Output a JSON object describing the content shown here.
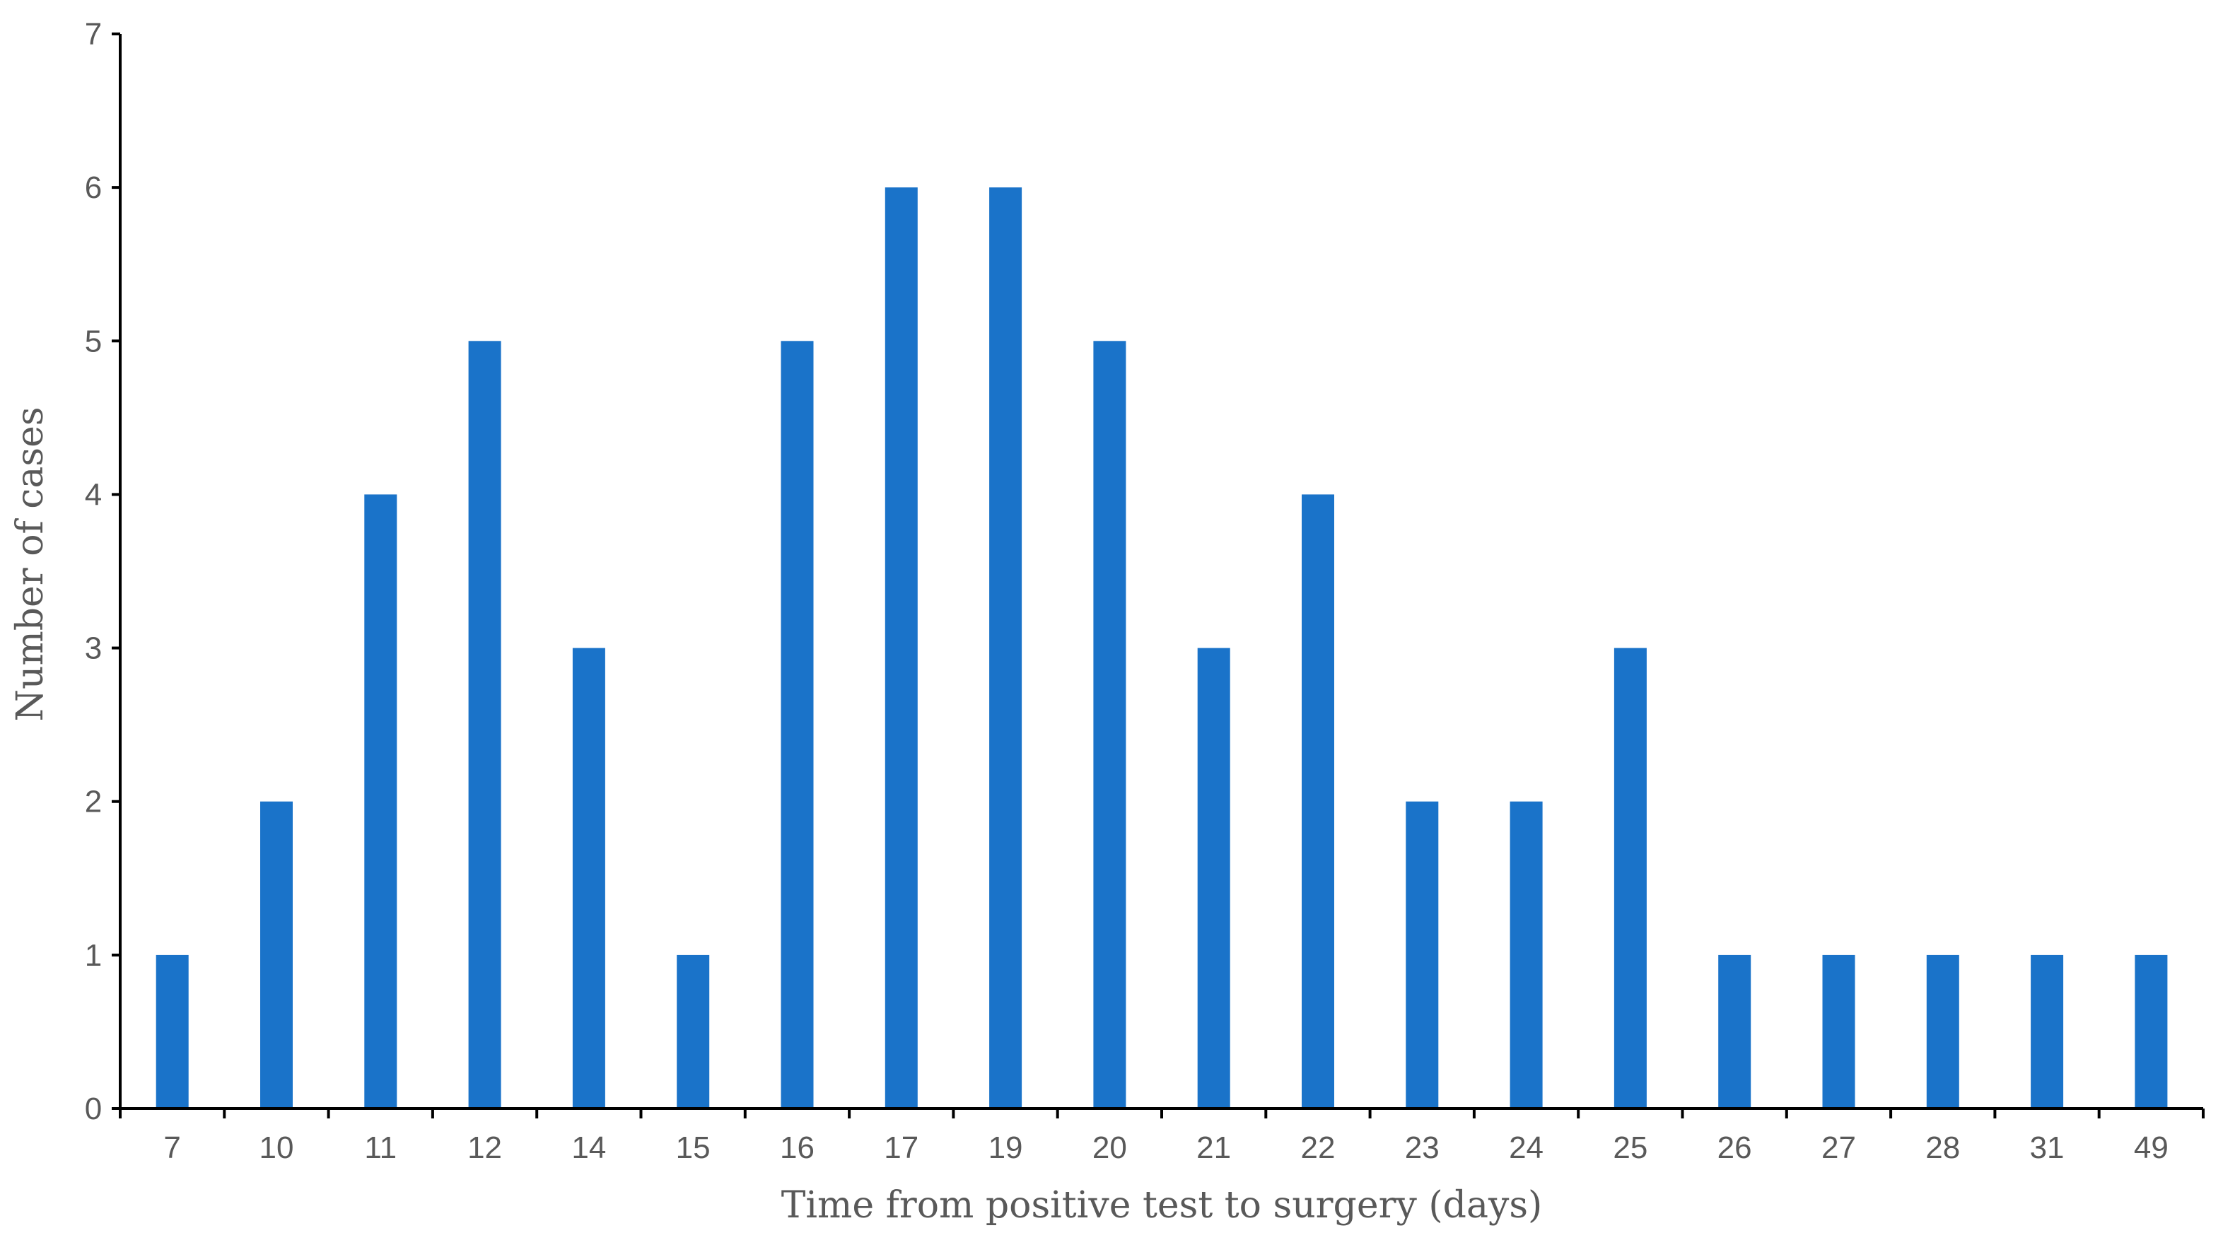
{
  "chart_data": {
    "type": "bar",
    "title": "",
    "xlabel": "Time from positive test to surgery (days)",
    "ylabel": "Number of cases",
    "categories": [
      "7",
      "10",
      "11",
      "12",
      "14",
      "15",
      "16",
      "17",
      "19",
      "20",
      "21",
      "22",
      "23",
      "24",
      "25",
      "26",
      "27",
      "28",
      "31",
      "49"
    ],
    "values": [
      1,
      2,
      4,
      5,
      3,
      1,
      5,
      6,
      6,
      5,
      3,
      4,
      2,
      2,
      3,
      1,
      1,
      1,
      1,
      1
    ],
    "ylim": [
      0,
      7
    ],
    "yticks": [
      0,
      1,
      2,
      3,
      4,
      5,
      6,
      7
    ],
    "grid": false,
    "legend": "none",
    "bar_color": "#1a73c9",
    "axis_color": "#000000",
    "text_color": "#595959"
  }
}
